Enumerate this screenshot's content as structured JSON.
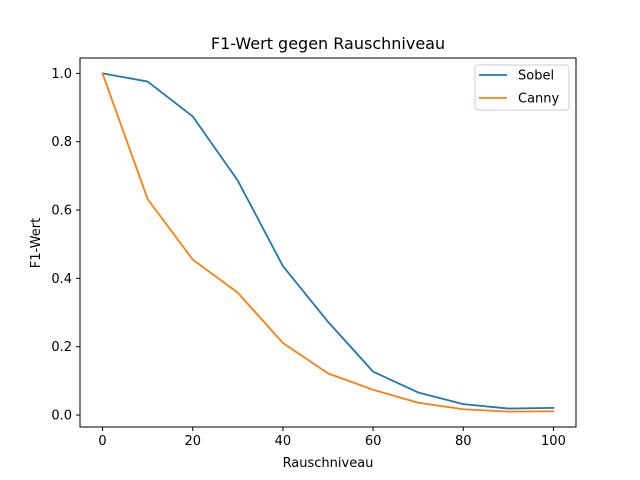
{
  "chart_data": {
    "type": "line",
    "title": "F1-Wert gegen Rauschniveau",
    "xlabel": "Rauschniveau",
    "ylabel": "F1-Wert",
    "x": [
      0,
      10,
      20,
      30,
      40,
      50,
      60,
      70,
      80,
      90,
      100
    ],
    "xlim": [
      -5,
      105
    ],
    "ylim": [
      -0.035,
      1.045
    ],
    "xticks": [
      "0",
      "20",
      "40",
      "60",
      "80",
      "100"
    ],
    "yticks": [
      "0.0",
      "0.2",
      "0.4",
      "0.6",
      "0.8",
      "1.0"
    ],
    "grid": false,
    "legend_position": "top-right",
    "series": [
      {
        "name": "Sobel",
        "color": "#1f77b4",
        "values": [
          1.0,
          0.976,
          0.874,
          0.686,
          0.436,
          0.273,
          0.127,
          0.066,
          0.032,
          0.019,
          0.021
        ]
      },
      {
        "name": "Canny",
        "color": "#ff7f0e",
        "values": [
          1.0,
          0.632,
          0.455,
          0.358,
          0.211,
          0.122,
          0.074,
          0.036,
          0.017,
          0.01,
          0.011
        ]
      }
    ]
  }
}
